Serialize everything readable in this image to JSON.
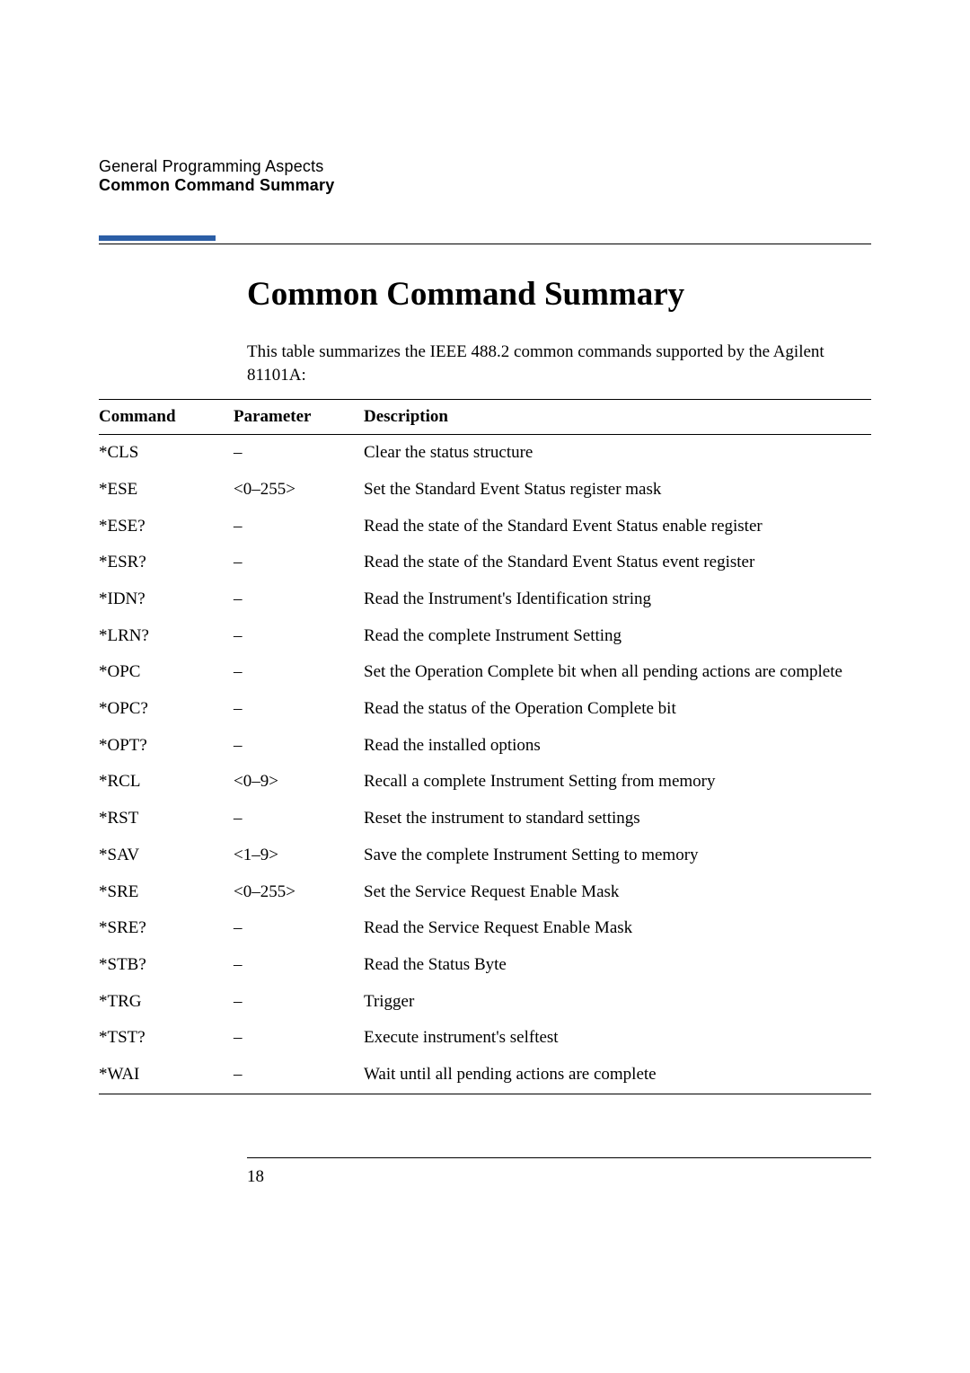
{
  "header": {
    "chapter": "General Programming Aspects",
    "section": "Common Command Summary"
  },
  "title": "Common Command Summary",
  "intro": "This table summarizes the IEEE 488.2 common commands supported by the Agilent 81101A:",
  "table": {
    "headers": {
      "command": "Command",
      "parameter": "Parameter",
      "description": "Description"
    },
    "rows": [
      {
        "command": "*CLS",
        "parameter": "–",
        "description": "Clear the status structure"
      },
      {
        "command": "*ESE",
        "parameter": "<0–255>",
        "description": "Set the Standard Event Status register mask"
      },
      {
        "command": "*ESE?",
        "parameter": "–",
        "description": "Read the state of the Standard Event Status enable register"
      },
      {
        "command": "*ESR?",
        "parameter": "–",
        "description": "Read the state of the Standard Event Status event register"
      },
      {
        "command": "*IDN?",
        "parameter": "–",
        "description": "Read the Instrument's Identification string"
      },
      {
        "command": "*LRN?",
        "parameter": "–",
        "description": "Read the complete Instrument Setting"
      },
      {
        "command": "*OPC",
        "parameter": "–",
        "description": "Set the Operation Complete bit when all pending actions are complete"
      },
      {
        "command": "*OPC?",
        "parameter": "–",
        "description": "Read the status of the Operation Complete bit"
      },
      {
        "command": "*OPT?",
        "parameter": "–",
        "description": "Read the installed options"
      },
      {
        "command": "*RCL",
        "parameter": "<0–9>",
        "description": "Recall a complete Instrument Setting from memory"
      },
      {
        "command": "*RST",
        "parameter": "–",
        "description": "Reset the instrument to standard settings"
      },
      {
        "command": "*SAV",
        "parameter": "<1–9>",
        "description": "Save the complete Instrument Setting to memory"
      },
      {
        "command": "*SRE",
        "parameter": "<0–255>",
        "description": "Set the Service Request Enable Mask"
      },
      {
        "command": "*SRE?",
        "parameter": "–",
        "description": "Read the Service Request Enable Mask"
      },
      {
        "command": "*STB?",
        "parameter": "–",
        "description": "Read the Status Byte"
      },
      {
        "command": "*TRG",
        "parameter": "–",
        "description": "Trigger"
      },
      {
        "command": "*TST?",
        "parameter": "–",
        "description": "Execute instrument's selftest"
      },
      {
        "command": "*WAI",
        "parameter": "–",
        "description": "Wait until all pending actions are complete"
      }
    ]
  },
  "page_number": "18",
  "colors": {
    "accent_blue": "#2b5ea6",
    "text": "#000000",
    "background": "#ffffff"
  }
}
